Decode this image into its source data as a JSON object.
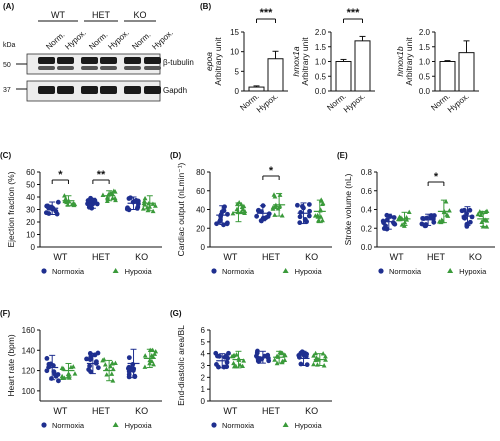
{
  "colors": {
    "normoxia": "#1f2f8f",
    "hypoxia": "#3a9a3a",
    "axis": "#111111"
  },
  "chart_data": [
    {
      "panel": "(A)",
      "type": "western-blot",
      "kda_label": "kDa",
      "kda_marks": [
        "50",
        "37"
      ],
      "groups": [
        "WT",
        "HET",
        "KO"
      ],
      "lanes": [
        "Norm.",
        "Hypox.",
        "Norm.",
        "Hypox.",
        "Norm.",
        "Hypox."
      ],
      "bands": [
        "β-tubulin",
        "Gapdh"
      ]
    },
    {
      "panel": "(B)",
      "type": "bar",
      "gene": "epoa",
      "ylabel": "Arbitrary unit",
      "categories": [
        "Norm.",
        "Hypox."
      ],
      "values": [
        1.0,
        8.2
      ],
      "errors": [
        0.3,
        1.9
      ],
      "yticks": [
        "0",
        "5",
        "10",
        "15"
      ],
      "ylim": [
        0,
        15
      ],
      "significance": "***"
    },
    {
      "panel": "",
      "type": "bar",
      "gene": "hmox1a",
      "ylabel": "Arbitrary unit",
      "categories": [
        "Norm.",
        "Hypox."
      ],
      "values": [
        1.0,
        1.7
      ],
      "errors": [
        0.07,
        0.15
      ],
      "yticks": [
        "0.0",
        "0.5",
        "1.0",
        "1.5",
        "2.0"
      ],
      "ylim": [
        0,
        2
      ],
      "significance": "***"
    },
    {
      "panel": "",
      "type": "bar",
      "gene": "hmox1b",
      "ylabel": "Arbitrary unit",
      "categories": [
        "Norm.",
        "Hypox."
      ],
      "values": [
        1.0,
        1.3
      ],
      "errors": [
        0.03,
        0.4
      ],
      "yticks": [
        "0.0",
        "0.5",
        "1.0",
        "1.5",
        "2.0"
      ],
      "ylim": [
        0,
        2
      ],
      "significance": ""
    },
    {
      "panel": "(C)",
      "type": "scatter",
      "ylabel": "Ejection fraction (%)",
      "groups": [
        "WT",
        "HET",
        "KO"
      ],
      "yticks": [
        "0",
        "10",
        "20",
        "30",
        "40",
        "50",
        "60"
      ],
      "ylim": [
        0,
        60
      ],
      "series": [
        {
          "name": "Normoxia",
          "means": [
            31,
            35,
            35
          ],
          "sd": [
            5,
            4,
            5
          ]
        },
        {
          "name": "Hypoxia",
          "means": [
            37,
            41,
            35
          ],
          "sd": [
            4,
            4,
            6
          ]
        }
      ],
      "significance": [
        "*",
        "**",
        ""
      ]
    },
    {
      "panel": "(D)",
      "type": "scatter",
      "ylabel": "Cardiac output (nLmin⁻¹)",
      "groups": [
        "WT",
        "HET",
        "KO"
      ],
      "yticks": [
        "0",
        "20",
        "40",
        "60",
        "80"
      ],
      "ylim": [
        0,
        80
      ],
      "series": [
        {
          "name": "Normoxia",
          "means": [
            34,
            36,
            36
          ],
          "sd": [
            10,
            8,
            11
          ]
        },
        {
          "name": "Hypoxia",
          "means": [
            37,
            45,
            38
          ],
          "sd": [
            10,
            12,
            12
          ]
        }
      ],
      "significance": [
        "",
        "*",
        ""
      ]
    },
    {
      "panel": "(E)",
      "type": "scatter",
      "ylabel": "Stroke volume (nL)",
      "groups": [
        "WT",
        "HET",
        "KO"
      ],
      "yticks": [
        "0.0",
        "0.2",
        "0.4",
        "0.6",
        "0.8"
      ],
      "ylim": [
        0,
        0.8
      ],
      "series": [
        {
          "name": "Normoxia",
          "means": [
            0.27,
            0.29,
            0.33
          ],
          "sd": [
            0.08,
            0.06,
            0.1
          ]
        },
        {
          "name": "Hypoxia",
          "means": [
            0.3,
            0.38,
            0.3
          ],
          "sd": [
            0.07,
            0.12,
            0.08
          ]
        }
      ],
      "significance": [
        "",
        "*",
        ""
      ]
    },
    {
      "panel": "(F)",
      "type": "scatter",
      "ylabel": "Heart rate (bpm)",
      "groups": [
        "WT",
        "HET",
        "KO"
      ],
      "yticks": [
        "100",
        "120",
        "140",
        "160"
      ],
      "ylim": [
        90,
        160
      ],
      "series": [
        {
          "name": "Normoxia",
          "means": [
            123,
            127,
            127
          ],
          "sd": [
            12,
            10,
            14
          ]
        },
        {
          "name": "Hypoxia",
          "means": [
            120,
            120,
            132
          ],
          "sd": [
            7,
            10,
            9
          ]
        }
      ],
      "significance": [
        "",
        "",
        ""
      ]
    },
    {
      "panel": "(G)",
      "type": "scatter",
      "ylabel": "End-diastolic area/BL",
      "groups": [
        "WT",
        "HET",
        "KO"
      ],
      "yticks": [
        "0",
        "1",
        "2",
        "3",
        "4",
        "5",
        "6"
      ],
      "ylim": [
        0,
        6
      ],
      "series": [
        {
          "name": "Normoxia",
          "means": [
            3.4,
            3.7,
            3.6
          ],
          "sd": [
            0.6,
            0.5,
            0.6
          ]
        },
        {
          "name": "Hypoxia",
          "means": [
            3.5,
            3.7,
            3.5
          ],
          "sd": [
            0.7,
            0.5,
            0.5
          ]
        }
      ],
      "significance": [
        "",
        "",
        ""
      ]
    }
  ]
}
